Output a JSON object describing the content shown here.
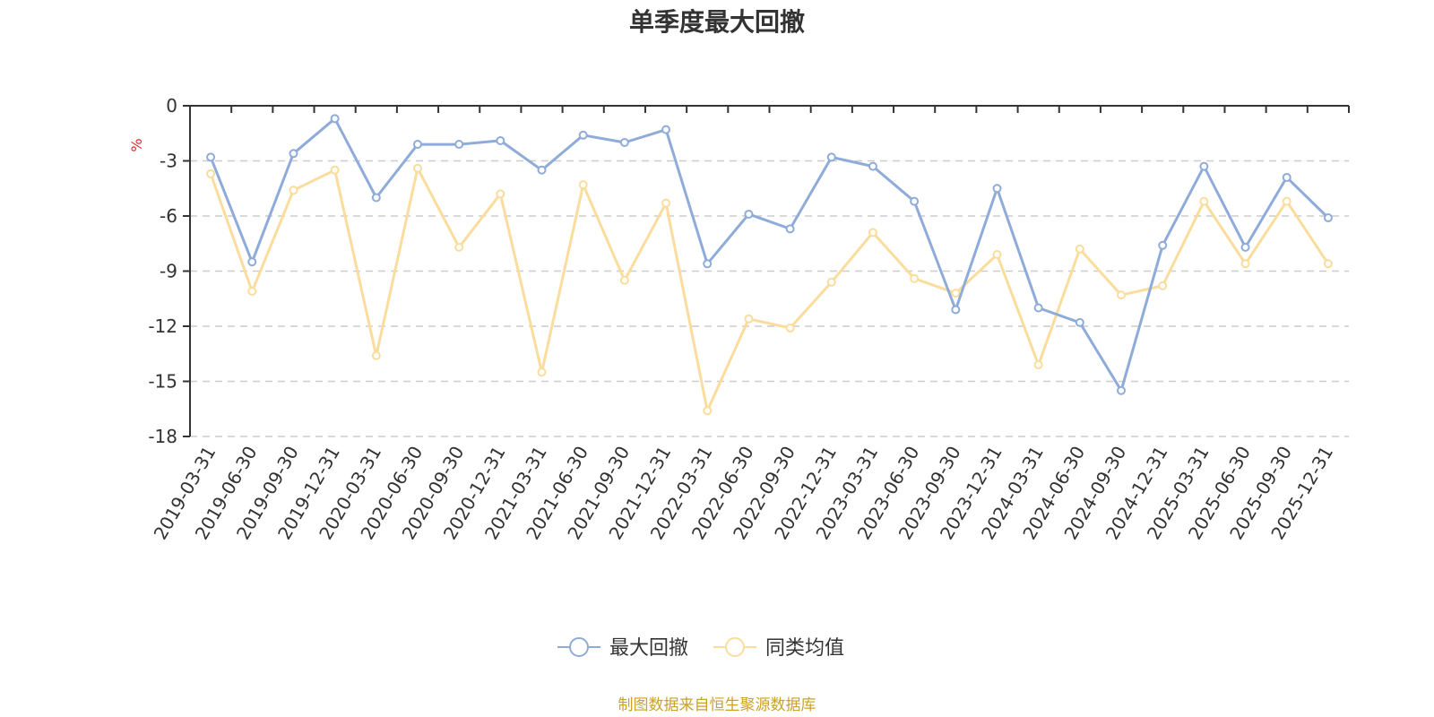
{
  "chart_data": {
    "type": "line",
    "title": "单季度最大回撤",
    "ylabel": "%",
    "ylim": [
      -18,
      0
    ],
    "yticks": [
      0,
      -3,
      -6,
      -9,
      -12,
      -15,
      -18
    ],
    "grid": true,
    "legend_position": "bottom",
    "categories": [
      "2019-03-31",
      "2019-06-30",
      "2019-09-30",
      "2019-12-31",
      "2020-03-31",
      "2020-06-30",
      "2020-09-30",
      "2020-12-31",
      "2021-03-31",
      "2021-06-30",
      "2021-09-30",
      "2021-12-31",
      "2022-03-31",
      "2022-06-30",
      "2022-09-30",
      "2022-12-31",
      "2023-03-31",
      "2023-06-30",
      "2023-09-30",
      "2023-12-31",
      "2024-03-31",
      "2024-06-30",
      "2024-09-30",
      "2024-12-31",
      "2025-03-31",
      "2025-06-30",
      "2025-09-30",
      "2025-12-31"
    ],
    "series": [
      {
        "name": "最大回撤",
        "color": "#8fabd9",
        "values": [
          -2.8,
          -8.5,
          -2.6,
          -0.7,
          -5.0,
          -2.1,
          -2.1,
          -1.9,
          -3.5,
          -1.6,
          -2.0,
          -1.3,
          -8.6,
          -5.9,
          -6.7,
          -2.8,
          -3.3,
          -5.2,
          -11.1,
          -4.5,
          -11.0,
          -11.8,
          -15.5,
          -7.6,
          -3.3,
          -7.7,
          -3.9,
          -6.1
        ]
      },
      {
        "name": "同类均值",
        "color": "#fadd9d",
        "values": [
          -3.7,
          -10.1,
          -4.6,
          -3.5,
          -13.6,
          -3.4,
          -7.7,
          -4.8,
          -14.5,
          -4.3,
          -9.5,
          -5.3,
          -16.6,
          -11.6,
          -12.1,
          -9.6,
          -6.9,
          -9.4,
          -10.2,
          -8.1,
          -14.1,
          -7.8,
          -10.3,
          -9.8,
          -5.2,
          -8.6,
          -5.2,
          -8.6
        ]
      }
    ]
  },
  "source_note": "制图数据来自恒生聚源数据库"
}
